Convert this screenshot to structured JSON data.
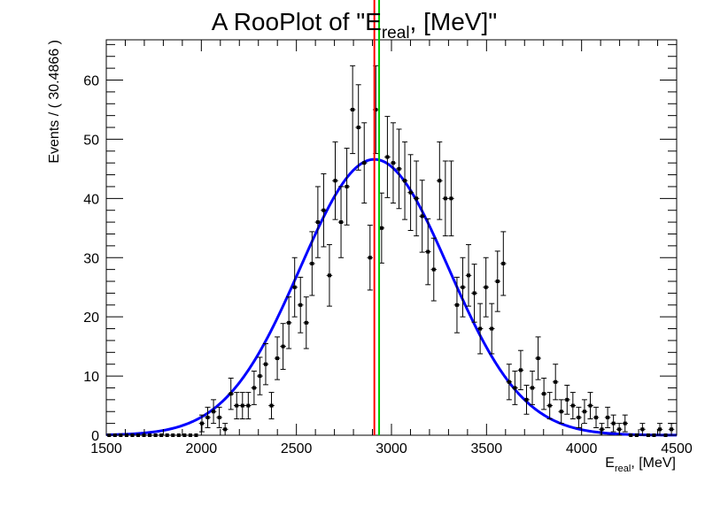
{
  "chart_data": {
    "type": "scatter",
    "title": {
      "prefix": "A RooPlot of \"E",
      "subscript": "real",
      "suffix": ", [MeV]\""
    },
    "xlabel": {
      "main": "E",
      "subscript": "real",
      "suffix": ", [MeV]"
    },
    "ylabel": "Events / ( 30.4866 )",
    "xlim": [
      1500,
      4500
    ],
    "ylim": [
      0,
      66.8
    ],
    "x_ticks": [
      1500,
      2000,
      2500,
      3000,
      3500,
      4000,
      4500
    ],
    "y_ticks": [
      0,
      10,
      20,
      30,
      40,
      50,
      60
    ],
    "x_tick_labels": [
      "1500",
      "2000",
      "2500",
      "3000",
      "3500",
      "4000",
      "4500"
    ],
    "y_tick_labels": [
      "0",
      "10",
      "20",
      "30",
      "40",
      "50",
      "60"
    ],
    "grid": false,
    "bin_width": 30.4866,
    "series": [
      {
        "kind": "data_points",
        "color": "#000000",
        "x": [
          1515.2,
          1545.7,
          1576.2,
          1606.7,
          1637.2,
          1667.7,
          1698.1,
          1728.6,
          1759.1,
          1789.6,
          1820.1,
          1850.6,
          1881.1,
          1911.6,
          1942.0,
          1972.5,
          2003.0,
          2033.5,
          2064.0,
          2094.5,
          2125.0,
          2155.5,
          2185.9,
          2216.4,
          2246.9,
          2277.4,
          2307.9,
          2338.4,
          2368.9,
          2399.4,
          2429.8,
          2460.3,
          2490.8,
          2521.3,
          2551.8,
          2582.3,
          2612.8,
          2643.3,
          2673.7,
          2704.2,
          2734.7,
          2765.2,
          2795.7,
          2826.2,
          2856.7,
          2887.2,
          2917.6,
          2948.1,
          2978.6,
          3009.1,
          3039.6,
          3070.1,
          3100.6,
          3131.0,
          3161.5,
          3192.0,
          3222.5,
          3253.0,
          3283.5,
          3314.0,
          3344.5,
          3374.9,
          3405.4,
          3435.9,
          3466.4,
          3496.9,
          3527.4,
          3557.9,
          3588.4,
          3618.8,
          3649.3,
          3679.8,
          3710.3,
          3740.8,
          3771.3,
          3801.8,
          3832.3,
          3862.7,
          3893.2,
          3923.7,
          3954.2,
          3984.7,
          4015.2,
          4045.7,
          4076.2,
          4106.6,
          4137.1,
          4167.6,
          4198.1,
          4228.6,
          4259.1,
          4289.6,
          4320.1,
          4350.5,
          4381.0,
          4411.5,
          4442.0,
          4472.5
        ],
        "y": [
          0,
          0,
          0,
          0,
          0,
          0,
          0,
          0,
          0,
          0,
          0,
          0,
          0,
          0,
          0,
          0,
          2,
          3,
          4,
          3,
          1,
          7,
          5,
          5,
          5,
          8,
          10,
          12,
          5,
          13,
          15,
          19,
          25,
          22,
          19,
          29,
          36,
          38,
          27,
          43,
          36,
          42,
          55,
          52,
          46,
          30,
          55,
          35,
          47,
          46,
          45,
          43,
          41,
          40,
          37,
          31,
          28,
          43,
          40,
          40,
          22,
          25,
          27,
          24,
          18,
          25,
          18,
          26,
          29,
          9,
          8,
          11,
          6,
          8,
          13,
          7,
          5,
          9,
          4,
          6,
          5,
          3,
          4,
          5,
          3,
          1,
          3,
          2,
          1,
          2,
          0,
          0,
          1,
          0,
          0,
          1,
          0,
          1
        ]
      },
      {
        "kind": "fit_curve",
        "color": "#0000ff",
        "model": "gaussian",
        "mean": 2910,
        "sigma": 390,
        "amplitude": 46.6
      }
    ],
    "markers": [
      {
        "kind": "vertical_line",
        "x": 2910,
        "color": "#ff0000"
      },
      {
        "kind": "vertical_line",
        "x": 2935,
        "color": "#00cc00"
      }
    ]
  }
}
